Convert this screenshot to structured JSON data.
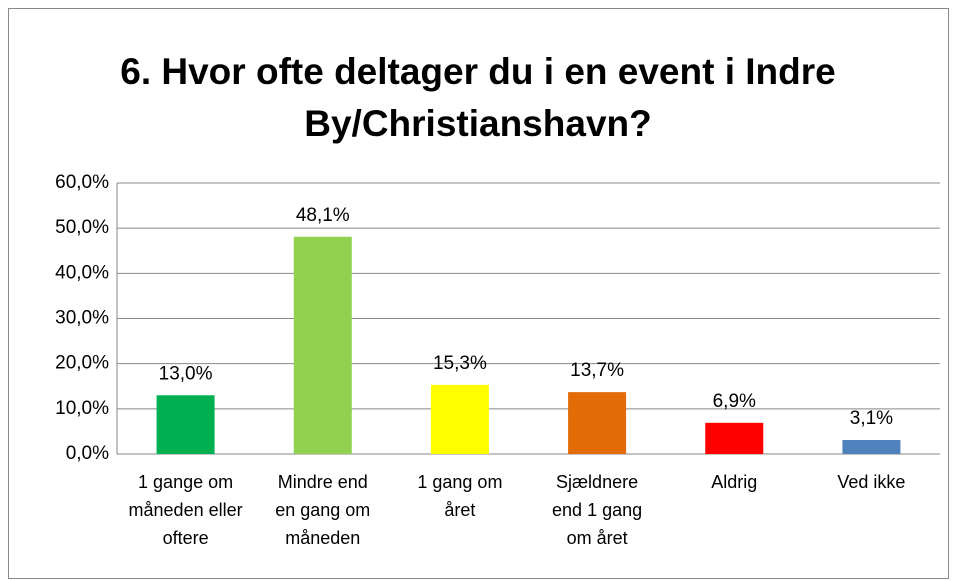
{
  "chart_data": {
    "type": "bar",
    "title": "6. Hvor ofte deltager du i en event i Indre By/Christianshavn?",
    "categories": [
      "1 gange om måneden eller oftere",
      "Mindre end en gang om måneden",
      "1 gang om året",
      "Sjældnere end 1 gang om året",
      "Aldrig",
      "Ved ikke"
    ],
    "values": [
      13.0,
      48.1,
      15.3,
      13.7,
      6.9,
      3.1
    ],
    "value_labels": [
      "13,0%",
      "48,1%",
      "15,3%",
      "13,7%",
      "6,9%",
      "3,1%"
    ],
    "colors": [
      "#00b050",
      "#92d050",
      "#ffff00",
      "#e36c09",
      "#ff0000",
      "#4f81bd"
    ],
    "ylim": [
      0,
      60
    ],
    "yticks": [
      {
        "value": 0,
        "label": "0,0%"
      },
      {
        "value": 10,
        "label": "10,0%"
      },
      {
        "value": 20,
        "label": "20,0%"
      },
      {
        "value": 30,
        "label": "30,0%"
      },
      {
        "value": 40,
        "label": "40,0%"
      },
      {
        "value": 50,
        "label": "50,0%"
      },
      {
        "value": 60,
        "label": "60,0%"
      }
    ],
    "grid": true
  }
}
